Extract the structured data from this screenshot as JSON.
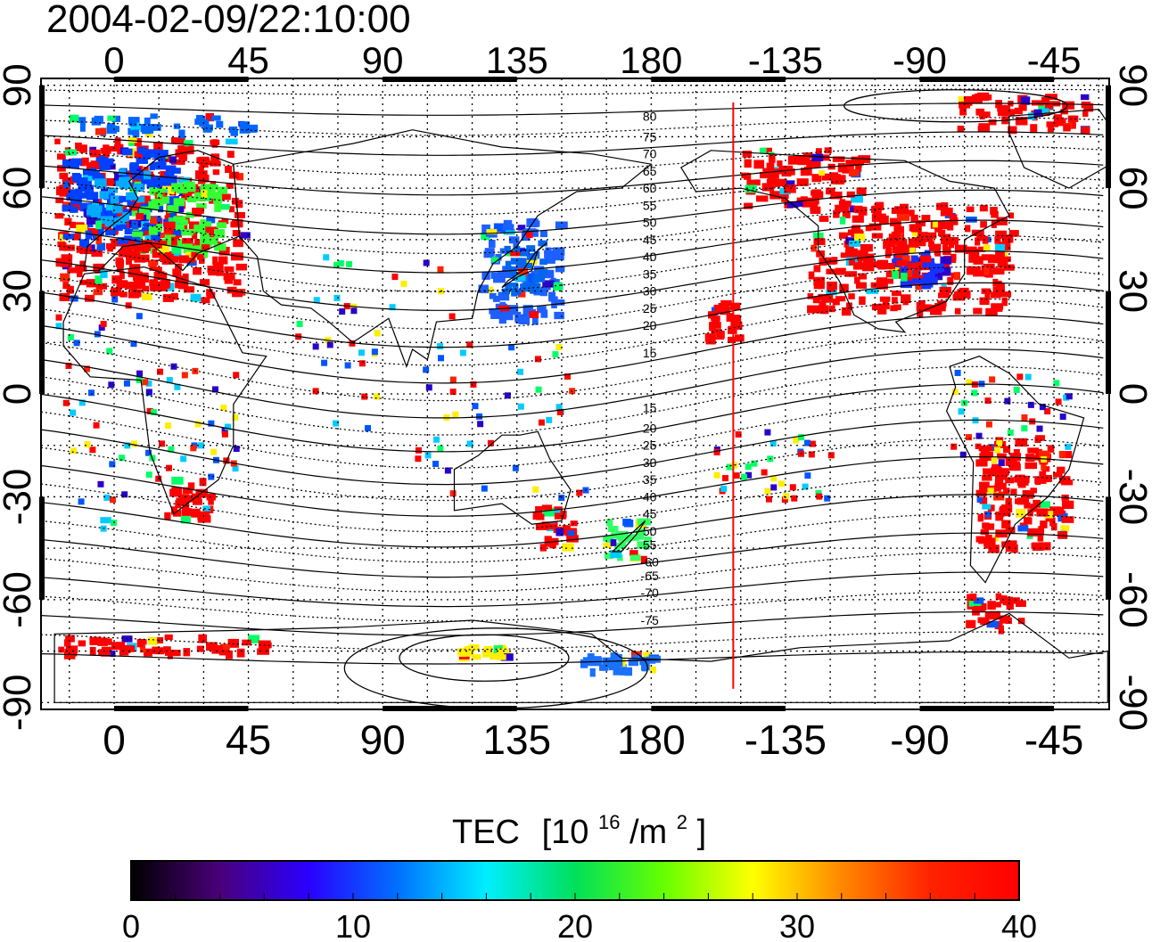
{
  "title": "2004-02-09/22:10:00",
  "map": {
    "lon_ticks": [
      {
        "lon": 0,
        "label": "0"
      },
      {
        "lon": 45,
        "label": "45"
      },
      {
        "lon": 90,
        "label": "90"
      },
      {
        "lon": 135,
        "label": "135"
      },
      {
        "lon": 180,
        "label": "180"
      },
      {
        "lon": 225,
        "label": "-135"
      },
      {
        "lon": 270,
        "label": "-90"
      },
      {
        "lon": 315,
        "label": "-45"
      }
    ],
    "lat_ticks": [
      {
        "lat": 90,
        "label": "90"
      },
      {
        "lat": 60,
        "label": "60"
      },
      {
        "lat": 30,
        "label": "30"
      },
      {
        "lat": 0,
        "label": "0"
      },
      {
        "lat": -30,
        "label": "-30"
      },
      {
        "lat": -60,
        "label": "-60"
      },
      {
        "lat": -90,
        "label": "-90"
      }
    ],
    "lon_range": [
      -24.5,
      333.5
    ],
    "lat_range": [
      -92,
      92
    ],
    "terminator_lon": 207.5,
    "contour_labels": [
      {
        "text": "80",
        "lon": 179.5,
        "lat": 81
      },
      {
        "text": "75",
        "lon": 179.5,
        "lat": 75
      },
      {
        "text": "70",
        "lon": 179.5,
        "lat": 70
      },
      {
        "text": "65",
        "lon": 179.5,
        "lat": 65
      },
      {
        "text": "60",
        "lon": 179.5,
        "lat": 60
      },
      {
        "text": "55",
        "lon": 179.5,
        "lat": 55
      },
      {
        "text": "50",
        "lon": 179.5,
        "lat": 50
      },
      {
        "text": "45",
        "lon": 179.5,
        "lat": 45
      },
      {
        "text": "40",
        "lon": 179.5,
        "lat": 40
      },
      {
        "text": "35",
        "lon": 179.5,
        "lat": 35
      },
      {
        "text": "30",
        "lon": 179.5,
        "lat": 30
      },
      {
        "text": "25",
        "lon": 179.5,
        "lat": 25
      },
      {
        "text": "20",
        "lon": 179.5,
        "lat": 20
      },
      {
        "text": "15",
        "lon": 179.5,
        "lat": 12
      },
      {
        "text": "15",
        "lon": 179.5,
        "lat": -4
      },
      {
        "text": "20",
        "lon": 179.5,
        "lat": -10
      },
      {
        "text": "25",
        "lon": 179.5,
        "lat": -15
      },
      {
        "text": "30",
        "lon": 179.5,
        "lat": -20
      },
      {
        "text": "35",
        "lon": 179.5,
        "lat": -25
      },
      {
        "text": "40",
        "lon": 179.5,
        "lat": -30
      },
      {
        "text": "45",
        "lon": 179.5,
        "lat": -35
      },
      {
        "text": "50",
        "lon": 179.5,
        "lat": -40
      },
      {
        "text": "55",
        "lon": 179.5,
        "lat": -44
      },
      {
        "text": "-60",
        "lon": 179.5,
        "lat": -49
      },
      {
        "text": "-65",
        "lon": 179.5,
        "lat": -53
      },
      {
        "text": "-70",
        "lon": 179.5,
        "lat": -58
      },
      {
        "text": "-75",
        "lon": 179.5,
        "lat": -66
      }
    ],
    "measurement_regions": [
      {
        "name": "europe",
        "lon": [
          -20,
          42
        ],
        "lat": [
          28,
          75
        ],
        "color": "#ff0000"
      },
      {
        "name": "europe",
        "lon": [
          -18,
          20
        ],
        "lat": [
          45,
          72
        ],
        "color": "#0040ff"
      },
      {
        "name": "europe",
        "lon": [
          5,
          35
        ],
        "lat": [
          42,
          62
        ],
        "color": "#33ff33"
      },
      {
        "name": "europe",
        "lon": [
          -10,
          10
        ],
        "lat": [
          50,
          66
        ],
        "color": "#00aaff"
      },
      {
        "name": "europe",
        "lon": [
          0,
          30
        ],
        "lat": [
          32,
          46
        ],
        "color": "#ff0000"
      },
      {
        "name": "japan",
        "lon": [
          122,
          148
        ],
        "lat": [
          22,
          52
        ],
        "color": "#1e60ff"
      },
      {
        "name": "japan",
        "lon": [
          130,
          145
        ],
        "lat": [
          30,
          45
        ],
        "color": "#0066ee"
      },
      {
        "name": "usa",
        "lon": [
          232,
          300
        ],
        "lat": [
          25,
          56
        ],
        "color": "#ff0000"
      },
      {
        "name": "usa",
        "lon": [
          260,
          276
        ],
        "lat": [
          32,
          42
        ],
        "color": "#1533ff"
      },
      {
        "name": "usa",
        "lon": [
          245,
          270
        ],
        "lat": [
          38,
          48
        ],
        "color": "#ff0000"
      },
      {
        "name": "usa",
        "lon": [
          210,
          250
        ],
        "lat": [
          55,
          72
        ],
        "color": "#ff0000"
      },
      {
        "name": "s-america",
        "lon": [
          288,
          318
        ],
        "lat": [
          -45,
          -12
        ],
        "color": "#ff0000"
      },
      {
        "name": "s-america",
        "lon": [
          285,
          305
        ],
        "lat": [
          -68,
          -58
        ],
        "color": "#ff0000"
      },
      {
        "name": "nz",
        "lon": [
          163,
          178
        ],
        "lat": [
          -48,
          -36
        ],
        "color": "#33ff66"
      },
      {
        "name": "australia",
        "lon": [
          140,
          154
        ],
        "lat": [
          -44,
          -32
        ],
        "color": "#ff0000"
      },
      {
        "name": "hawaii",
        "lon": [
          198,
          208
        ],
        "lat": [
          16,
          28
        ],
        "color": "#ff0000"
      },
      {
        "name": "s-africa",
        "lon": [
          16,
          32
        ],
        "lat": [
          -36,
          -24
        ],
        "color": "#ff0000"
      },
      {
        "name": "antarctica",
        "lon": [
          -20,
          50
        ],
        "lat": [
          -75,
          -70
        ],
        "color": "#ff0000"
      },
      {
        "name": "antarctica",
        "lon": [
          115,
          130
        ],
        "lat": [
          -76,
          -73
        ],
        "color": "#ffee00"
      },
      {
        "name": "antarctica",
        "lon": [
          155,
          180
        ],
        "lat": [
          -80,
          -75
        ],
        "color": "#1a70ff"
      },
      {
        "name": "arctic",
        "lon": [
          282,
          325
        ],
        "lat": [
          78,
          88
        ],
        "color": "#ff0000"
      },
      {
        "name": "arctic",
        "lon": [
          -15,
          45
        ],
        "lat": [
          77,
          82
        ],
        "color": "#0066ff"
      }
    ]
  },
  "colorbar": {
    "label": "TEC",
    "units": "[10",
    "units_exp": "16",
    "units_mid": "/m",
    "units_exp2": "2",
    "units_end": "]",
    "min": 0,
    "max": 40,
    "tick_labels": [
      "0",
      "10",
      "20",
      "30",
      "40"
    ],
    "colors": [
      "#000000",
      "#4a007a",
      "#2a00ff",
      "#0070ff",
      "#00eeff",
      "#00e05a",
      "#66ff00",
      "#ffff00",
      "#ff8800",
      "#ff2200",
      "#ff0000"
    ]
  }
}
